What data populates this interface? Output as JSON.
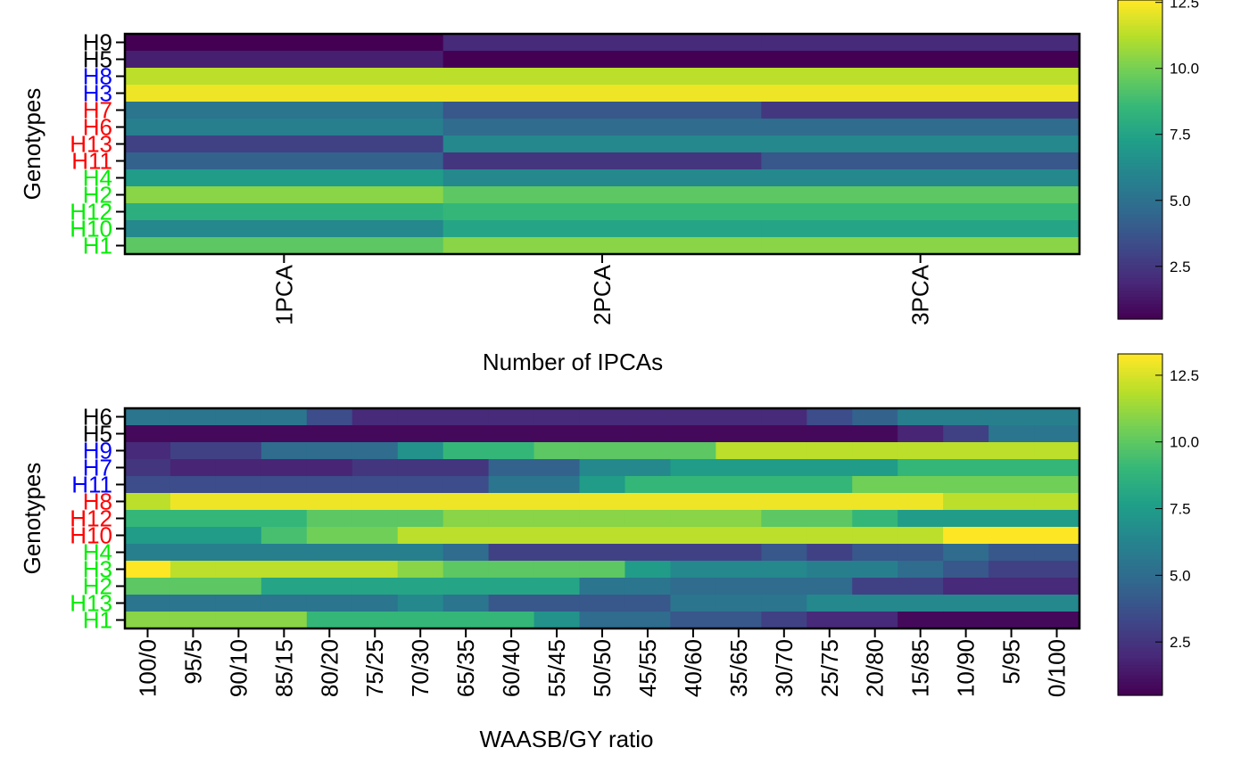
{
  "chart_data": [
    {
      "type": "heatmap",
      "id": "ipca",
      "xlabel": "Number of IPCAs",
      "ylabel": "Genotypes",
      "x": [
        "1PCA",
        "2PCA",
        "3PCA"
      ],
      "rows": [
        {
          "label": "H9",
          "color": "#000000",
          "values": [
            0.5,
            2.0,
            2.0
          ]
        },
        {
          "label": "H5",
          "color": "#000000",
          "values": [
            1.6,
            0.5,
            0.5
          ]
        },
        {
          "label": "H8",
          "color": "#0000FF",
          "values": [
            12.0,
            12.0,
            12.0
          ]
        },
        {
          "label": "H3",
          "color": "#0000FF",
          "values": [
            13.0,
            13.0,
            13.0
          ]
        },
        {
          "label": "H7",
          "color": "#FF0000",
          "values": [
            5.5,
            4.0,
            2.6
          ]
        },
        {
          "label": "H6",
          "color": "#FF0000",
          "values": [
            6.0,
            5.0,
            5.0
          ]
        },
        {
          "label": "H13",
          "color": "#FF0000",
          "values": [
            3.0,
            6.5,
            6.5
          ]
        },
        {
          "label": "H11",
          "color": "#FF0000",
          "values": [
            4.5,
            2.5,
            4.0
          ]
        },
        {
          "label": "H4",
          "color": "#00EE00",
          "values": [
            7.5,
            6.5,
            6.5
          ]
        },
        {
          "label": "H2",
          "color": "#00EE00",
          "values": [
            11.0,
            10.0,
            10.0
          ]
        },
        {
          "label": "H12",
          "color": "#00EE00",
          "values": [
            8.5,
            9.0,
            9.0
          ]
        },
        {
          "label": "H10",
          "color": "#00EE00",
          "values": [
            6.5,
            8.0,
            8.0
          ]
        },
        {
          "label": "H1",
          "color": "#00EE00",
          "values": [
            10.0,
            11.0,
            11.0
          ]
        }
      ],
      "colorbar": {
        "min": 0.5,
        "max": 13.3,
        "ticks": [
          "2.5",
          "5.0",
          "7.5",
          "10.0",
          "12.5"
        ]
      }
    },
    {
      "type": "heatmap",
      "id": "ratio",
      "xlabel": "WAASB/GY ratio",
      "ylabel": "Genotypes",
      "x": [
        "100/0",
        "95/5",
        "90/10",
        "85/15",
        "80/20",
        "75/25",
        "70/30",
        "65/35",
        "60/40",
        "55/45",
        "50/50",
        "45/55",
        "40/60",
        "35/65",
        "30/70",
        "25/75",
        "20/80",
        "15/85",
        "10/90",
        "5/95",
        "0/100"
      ],
      "rows": [
        {
          "label": "H6",
          "color": "#000000",
          "values": [
            5.5,
            5.5,
            5.5,
            5.5,
            3.5,
            2.0,
            2.0,
            2.0,
            2.0,
            2.0,
            2.0,
            2.0,
            2.0,
            2.0,
            2.0,
            3.5,
            4.5,
            6.0,
            6.0,
            6.0,
            6.0
          ]
        },
        {
          "label": "H5",
          "color": "#000000",
          "values": [
            0.8,
            0.8,
            0.8,
            0.8,
            0.8,
            0.8,
            0.8,
            0.8,
            0.8,
            0.8,
            0.8,
            0.8,
            0.8,
            0.8,
            0.8,
            0.8,
            0.8,
            1.8,
            3.0,
            5.5,
            5.5
          ]
        },
        {
          "label": "H9",
          "color": "#0000FF",
          "values": [
            2.0,
            3.0,
            3.0,
            5.0,
            5.0,
            5.0,
            7.0,
            9.0,
            9.0,
            10.0,
            10.0,
            10.0,
            10.0,
            12.0,
            12.0,
            12.0,
            12.0,
            12.0,
            12.0,
            12.0,
            12.0
          ]
        },
        {
          "label": "H7",
          "color": "#0000FF",
          "values": [
            2.5,
            1.8,
            1.8,
            1.8,
            1.8,
            2.5,
            2.5,
            2.5,
            4.5,
            4.5,
            6.5,
            6.5,
            7.5,
            7.5,
            7.5,
            7.5,
            7.5,
            9.0,
            9.0,
            9.0,
            9.0
          ]
        },
        {
          "label": "H11",
          "color": "#0000FF",
          "values": [
            3.5,
            3.5,
            3.5,
            3.5,
            3.5,
            3.5,
            3.5,
            3.5,
            5.5,
            5.5,
            7.5,
            9.0,
            9.0,
            9.0,
            9.0,
            9.0,
            10.5,
            10.5,
            10.5,
            10.5,
            10.5
          ]
        },
        {
          "label": "H8",
          "color": "#FF0000",
          "values": [
            12.0,
            13.0,
            13.0,
            13.0,
            13.0,
            13.0,
            13.0,
            13.0,
            13.0,
            13.0,
            13.0,
            13.0,
            13.0,
            13.0,
            13.0,
            13.0,
            13.0,
            13.0,
            12.0,
            12.0,
            12.0
          ]
        },
        {
          "label": "H12",
          "color": "#FF0000",
          "values": [
            9.0,
            9.0,
            9.0,
            9.0,
            10.0,
            10.0,
            10.0,
            11.0,
            11.0,
            11.0,
            11.0,
            11.0,
            11.0,
            11.0,
            10.0,
            10.0,
            9.0,
            7.5,
            7.5,
            7.5,
            7.5
          ]
        },
        {
          "label": "H10",
          "color": "#FF0000",
          "values": [
            7.5,
            7.5,
            7.5,
            9.5,
            10.5,
            10.5,
            12.0,
            12.0,
            12.0,
            12.0,
            12.0,
            12.0,
            12.0,
            12.0,
            12.0,
            12.0,
            12.0,
            12.0,
            13.3,
            13.3,
            13.3
          ]
        },
        {
          "label": "H4",
          "color": "#00EE00",
          "values": [
            6.0,
            6.0,
            6.0,
            6.0,
            6.0,
            6.0,
            6.0,
            5.0,
            3.0,
            3.0,
            3.0,
            3.0,
            3.0,
            3.0,
            4.0,
            3.0,
            4.0,
            4.0,
            5.0,
            4.0,
            4.0
          ]
        },
        {
          "label": "H3",
          "color": "#00EE00",
          "values": [
            13.3,
            12.0,
            12.0,
            12.0,
            12.0,
            12.0,
            11.0,
            10.0,
            10.0,
            10.0,
            10.0,
            7.5,
            6.5,
            6.5,
            6.5,
            6.0,
            6.0,
            5.0,
            4.0,
            3.0,
            3.0
          ]
        },
        {
          "label": "H2",
          "color": "#00EE00",
          "values": [
            10.0,
            10.0,
            10.0,
            8.0,
            8.0,
            8.0,
            8.0,
            8.0,
            8.0,
            8.0,
            5.5,
            5.5,
            5.0,
            5.0,
            5.0,
            5.0,
            3.0,
            3.0,
            2.0,
            2.0,
            2.0
          ]
        },
        {
          "label": "H13",
          "color": "#00EE00",
          "values": [
            5.5,
            5.5,
            5.5,
            5.5,
            5.5,
            5.5,
            6.5,
            5.5,
            4.0,
            4.0,
            4.0,
            4.0,
            5.5,
            5.5,
            5.5,
            6.5,
            6.5,
            6.5,
            6.5,
            6.5,
            6.5
          ]
        },
        {
          "label": "H1",
          "color": "#00EE00",
          "values": [
            11.0,
            11.0,
            11.0,
            11.0,
            9.0,
            9.0,
            9.0,
            9.0,
            9.0,
            7.0,
            5.0,
            5.0,
            4.0,
            4.0,
            3.0,
            2.0,
            2.0,
            0.8,
            0.8,
            0.8,
            0.8
          ]
        }
      ],
      "colorbar": {
        "min": 0.5,
        "max": 13.3,
        "ticks": [
          "2.5",
          "5.0",
          "7.5",
          "10.0",
          "12.5"
        ]
      }
    }
  ]
}
